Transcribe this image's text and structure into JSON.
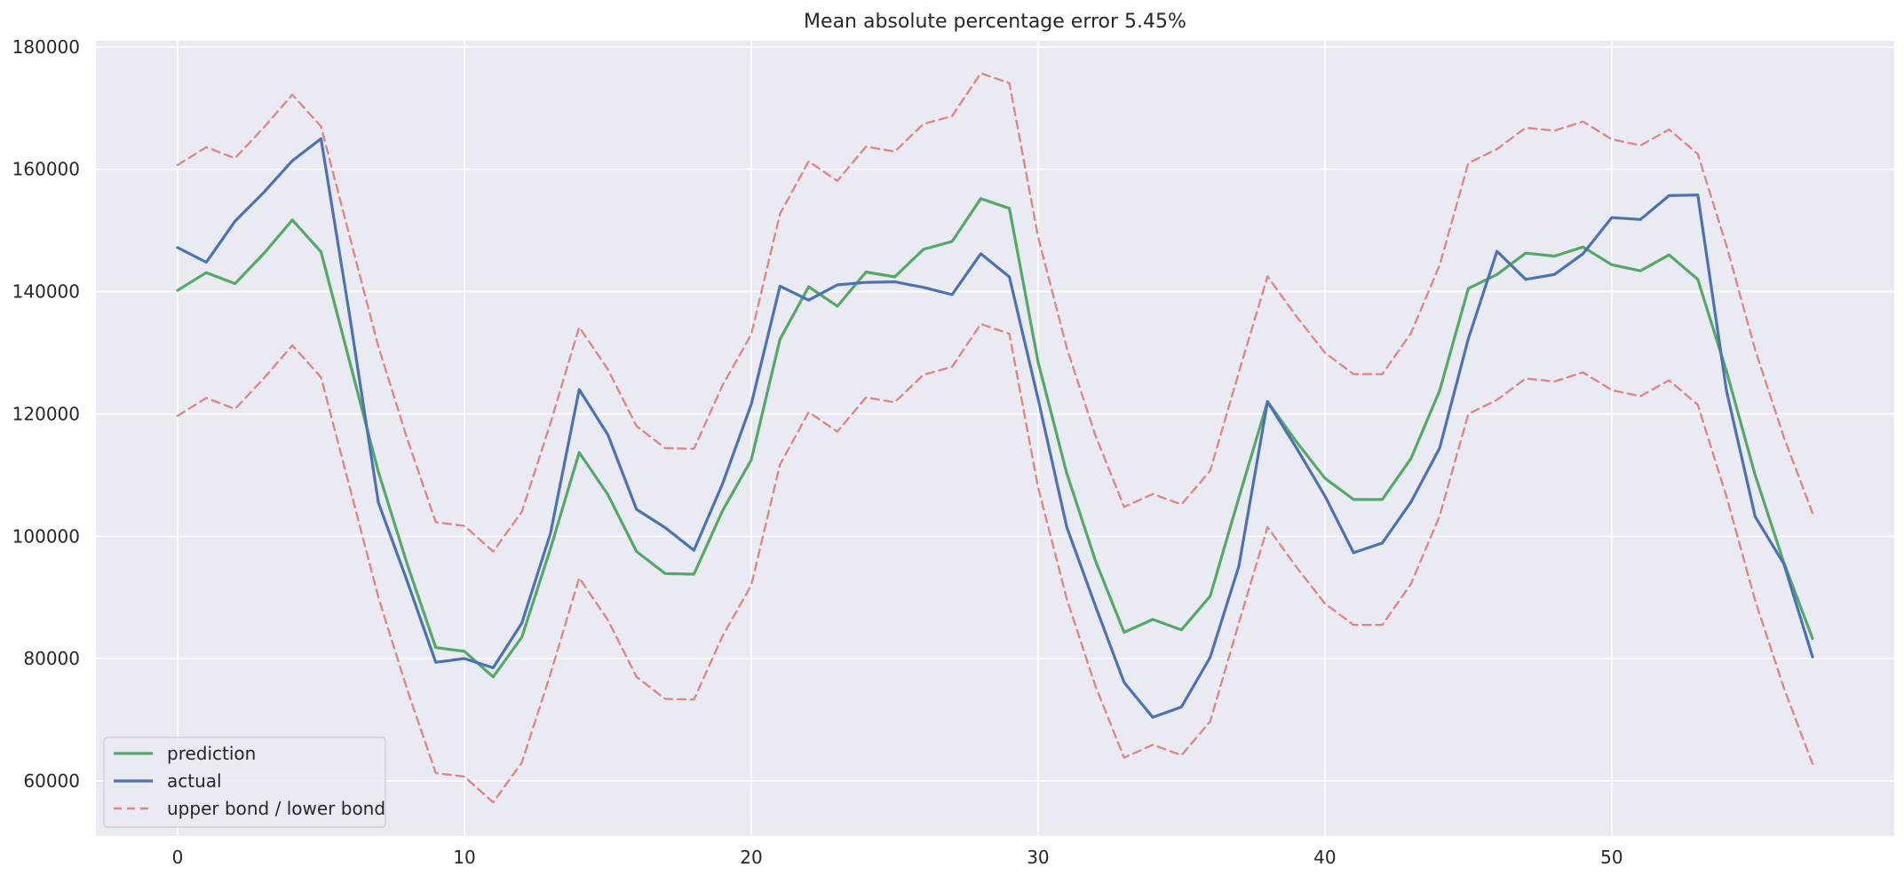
{
  "chart_data": {
    "type": "line",
    "title": "Mean absolute percentage error 5.45%",
    "xlabel": "",
    "ylabel": "",
    "xlim": [
      -2.85,
      59.85
    ],
    "ylim": [
      51000,
      181000
    ],
    "x_ticks": [
      0,
      10,
      20,
      30,
      40,
      50
    ],
    "y_ticks": [
      60000,
      80000,
      100000,
      120000,
      140000,
      160000,
      180000
    ],
    "grid": true,
    "legend_position": "lower-left",
    "colors": {
      "background": "#eaeaf2",
      "grid": "#ffffff",
      "prediction": "#55a868",
      "actual": "#4c72b0",
      "bound": "#dd8888"
    },
    "legend": {
      "prediction": "prediction",
      "actual": "actual",
      "bounds": "upper bond / lower bond"
    },
    "x": [
      0,
      1,
      2,
      3,
      4,
      5,
      6,
      7,
      8,
      9,
      10,
      11,
      12,
      13,
      14,
      15,
      16,
      17,
      18,
      19,
      20,
      21,
      22,
      23,
      24,
      25,
      26,
      27,
      28,
      29,
      30,
      31,
      32,
      33,
      34,
      35,
      36,
      37,
      38,
      39,
      40,
      41,
      42,
      43,
      44,
      45,
      46,
      47,
      48,
      49,
      50,
      51,
      52,
      53,
      54,
      55,
      56,
      57
    ],
    "series": [
      {
        "name": "prediction",
        "style": "solid",
        "values": [
          140200,
          143100,
          141300,
          146200,
          151700,
          146500,
          128500,
          110500,
          95500,
          81800,
          81200,
          77000,
          83500,
          98000,
          113700,
          106800,
          97500,
          93900,
          93800,
          104200,
          112500,
          132200,
          140800,
          137600,
          143200,
          142400,
          146900,
          148200,
          155200,
          153600,
          128500,
          110300,
          96000,
          84300,
          86400,
          84700,
          90200,
          106300,
          122000,
          115500,
          109500,
          106000,
          106000,
          112700,
          123800,
          140500,
          142800,
          146300,
          145800,
          147300,
          144400,
          143400,
          146000,
          142000,
          127000,
          110000,
          95700,
          83300
        ]
      },
      {
        "name": "actual",
        "style": "solid",
        "values": [
          147200,
          144800,
          151500,
          156200,
          161400,
          165000,
          136000,
          105500,
          92700,
          79400,
          80000,
          78500,
          85800,
          100500,
          124000,
          116600,
          104400,
          101400,
          97700,
          108600,
          121600,
          140900,
          138600,
          141100,
          141500,
          141600,
          140700,
          139500,
          146200,
          142400,
          122500,
          101500,
          88600,
          76100,
          70400,
          72100,
          80200,
          95100,
          122000,
          114500,
          106600,
          97300,
          98900,
          105600,
          114400,
          132300,
          146600,
          142000,
          142800,
          146200,
          152100,
          151800,
          155700,
          155800,
          123800,
          103200,
          95500,
          80300
        ]
      },
      {
        "name": "upper bond",
        "style": "dashed",
        "values": [
          160700,
          163600,
          161800,
          166800,
          172200,
          167000,
          149000,
          131000,
          116000,
          102300,
          101700,
          97500,
          104000,
          118500,
          134200,
          127300,
          118000,
          114400,
          114300,
          124700,
          133000,
          152700,
          161300,
          158100,
          163700,
          162900,
          167400,
          168700,
          175700,
          174100,
          149000,
          130800,
          116500,
          104800,
          106900,
          105200,
          110700,
          126800,
          142500,
          136000,
          130000,
          126500,
          126500,
          133200,
          144300,
          161000,
          163300,
          166800,
          166300,
          167800,
          164900,
          163900,
          166500,
          162500,
          147500,
          130500,
          116200,
          103800
        ]
      },
      {
        "name": "lower bond",
        "style": "dashed",
        "values": [
          119700,
          122600,
          120800,
          125800,
          131200,
          126000,
          108000,
          90000,
          75000,
          61300,
          60700,
          56500,
          63000,
          77500,
          93200,
          86300,
          77000,
          73400,
          73300,
          83700,
          92000,
          111700,
          120300,
          117100,
          122700,
          121900,
          126400,
          127700,
          134700,
          133100,
          108000,
          89800,
          75500,
          63800,
          65900,
          64200,
          69700,
          85800,
          101500,
          95000,
          89000,
          85500,
          85500,
          92200,
          103300,
          120000,
          122300,
          125800,
          125300,
          126800,
          123900,
          122900,
          125500,
          121500,
          106500,
          89500,
          75200,
          62800
        ]
      }
    ]
  }
}
